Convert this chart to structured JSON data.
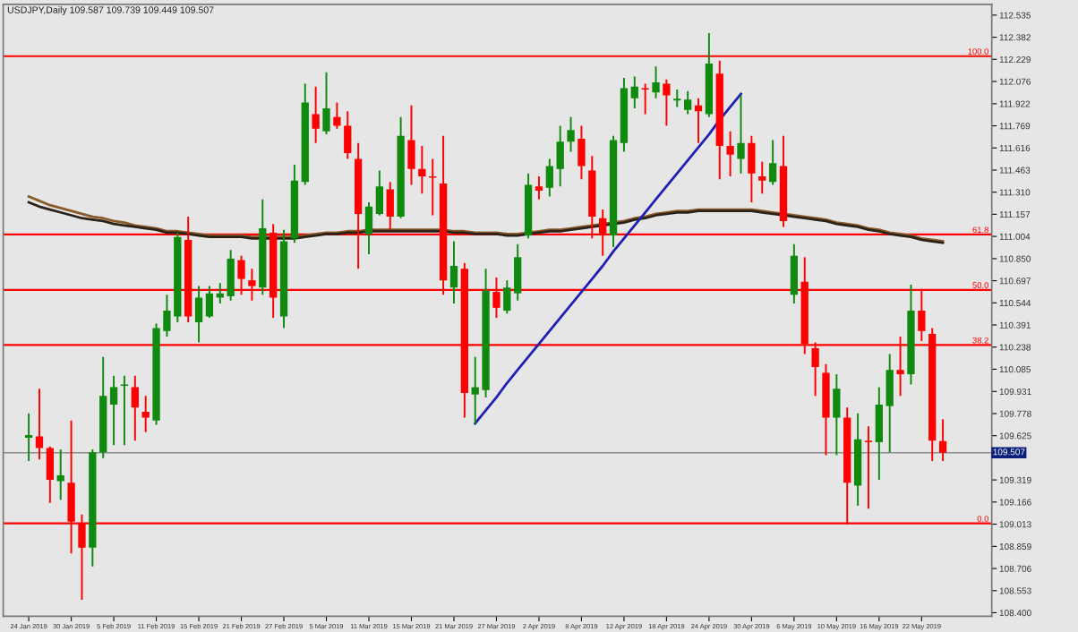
{
  "chart_data": {
    "type": "candlestick",
    "title": "USDJPY,Daily 109.587 109.739 109.449 109.507",
    "categories": [
      "24 Jan 2019",
      null,
      null,
      null,
      "30 Jan 2019",
      null,
      null,
      null,
      "5 Feb 2019",
      null,
      null,
      null,
      "11 Feb 2019",
      null,
      null,
      null,
      "15 Feb 2019",
      null,
      null,
      null,
      "21 Feb 2019",
      null,
      null,
      null,
      "27 Feb 2019",
      null,
      null,
      null,
      "5 Mar 2019",
      null,
      null,
      null,
      "11 Mar 2019",
      null,
      null,
      null,
      "15 Mar 2019",
      null,
      null,
      null,
      "21 Mar 2019",
      null,
      null,
      null,
      "27 Mar 2019",
      null,
      null,
      null,
      "2 Apr 2019",
      null,
      null,
      null,
      "8 Apr 2019",
      null,
      null,
      null,
      "12 Apr 2019",
      null,
      null,
      null,
      "18 Apr 2019",
      null,
      null,
      null,
      "24 Apr 2019",
      null,
      null,
      null,
      "30 Apr 2019",
      null,
      null,
      null,
      "6 May 2019",
      null,
      null,
      null,
      "10 May 2019",
      null,
      null,
      null,
      "16 May 2019",
      null,
      null,
      null,
      "22 May 2019",
      null,
      null
    ],
    "ohlc": [
      [
        109.61,
        109.78,
        109.45,
        109.63
      ],
      [
        109.62,
        109.95,
        109.46,
        109.54
      ],
      [
        109.54,
        109.55,
        109.16,
        109.32
      ],
      [
        109.31,
        109.53,
        109.18,
        109.35
      ],
      [
        109.3,
        109.73,
        108.81,
        109.03
      ],
      [
        109.02,
        109.08,
        108.49,
        108.85
      ],
      [
        108.85,
        109.53,
        108.72,
        109.51
      ],
      [
        109.51,
        110.17,
        109.47,
        109.9
      ],
      [
        109.84,
        110.04,
        109.56,
        109.96
      ],
      [
        109.97,
        110.04,
        109.56,
        109.98
      ],
      [
        109.96,
        110.04,
        109.59,
        109.82
      ],
      [
        109.79,
        109.9,
        109.65,
        109.75
      ],
      [
        109.73,
        110.4,
        109.7,
        110.37
      ],
      [
        110.35,
        110.6,
        110.31,
        110.49
      ],
      [
        110.45,
        111.03,
        110.41,
        111.0
      ],
      [
        110.98,
        111.14,
        110.41,
        110.45
      ],
      [
        110.41,
        110.66,
        110.27,
        110.58
      ],
      [
        110.45,
        110.66,
        110.44,
        110.61
      ],
      [
        110.58,
        110.68,
        110.54,
        110.61
      ],
      [
        110.59,
        110.91,
        110.56,
        110.85
      ],
      [
        110.84,
        110.87,
        110.6,
        110.71
      ],
      [
        110.7,
        110.78,
        110.56,
        110.66
      ],
      [
        110.65,
        111.26,
        110.6,
        111.06
      ],
      [
        111.03,
        111.09,
        110.44,
        110.58
      ],
      [
        110.45,
        111.05,
        110.37,
        110.97
      ],
      [
        110.99,
        111.5,
        110.96,
        111.39
      ],
      [
        111.38,
        112.06,
        111.36,
        111.93
      ],
      [
        111.85,
        112.04,
        111.65,
        111.75
      ],
      [
        111.73,
        112.14,
        111.71,
        111.89
      ],
      [
        111.83,
        111.93,
        111.75,
        111.77
      ],
      [
        111.77,
        111.87,
        111.54,
        111.58
      ],
      [
        111.54,
        111.65,
        110.78,
        111.16
      ],
      [
        111.02,
        111.24,
        110.88,
        111.21
      ],
      [
        111.16,
        111.46,
        111.15,
        111.35
      ],
      [
        111.33,
        111.38,
        111.05,
        111.14
      ],
      [
        111.14,
        111.83,
        111.13,
        111.7
      ],
      [
        111.67,
        111.91,
        111.36,
        111.47
      ],
      [
        111.47,
        111.63,
        111.3,
        111.42
      ],
      [
        111.42,
        111.54,
        111.15,
        111.41
      ],
      [
        111.37,
        111.7,
        110.6,
        110.7
      ],
      [
        110.65,
        110.97,
        110.54,
        110.8
      ],
      [
        110.78,
        110.82,
        109.75,
        109.92
      ],
      [
        109.91,
        110.17,
        109.71,
        109.96
      ],
      [
        109.94,
        110.78,
        109.89,
        110.63
      ],
      [
        110.62,
        110.72,
        110.44,
        110.51
      ],
      [
        110.49,
        110.7,
        110.47,
        110.65
      ],
      [
        110.61,
        110.95,
        110.56,
        110.86
      ],
      [
        111.01,
        111.44,
        110.99,
        111.36
      ],
      [
        111.35,
        111.42,
        111.26,
        111.32
      ],
      [
        111.34,
        111.54,
        111.28,
        111.49
      ],
      [
        111.47,
        111.77,
        111.35,
        111.66
      ],
      [
        111.66,
        111.83,
        111.59,
        111.74
      ],
      [
        111.68,
        111.77,
        111.4,
        111.49
      ],
      [
        111.46,
        111.56,
        110.99,
        111.14
      ],
      [
        111.13,
        111.19,
        110.87,
        111.01
      ],
      [
        111.01,
        111.7,
        110.93,
        111.67
      ],
      [
        111.65,
        112.1,
        111.59,
        112.03
      ],
      [
        111.96,
        112.11,
        111.89,
        112.04
      ],
      [
        112.03,
        112.06,
        111.85,
        112.02
      ],
      [
        112.0,
        112.18,
        111.96,
        112.07
      ],
      [
        112.06,
        112.09,
        111.77,
        111.98
      ],
      [
        111.95,
        112.02,
        111.9,
        111.95
      ],
      [
        111.88,
        112.01,
        111.85,
        111.95
      ],
      [
        111.91,
        111.96,
        111.65,
        111.87
      ],
      [
        111.85,
        112.41,
        111.83,
        112.2
      ],
      [
        112.13,
        112.22,
        111.4,
        111.63
      ],
      [
        111.63,
        111.73,
        111.42,
        111.57
      ],
      [
        111.54,
        111.98,
        111.44,
        111.65
      ],
      [
        111.65,
        111.7,
        111.24,
        111.44
      ],
      [
        111.42,
        111.52,
        111.3,
        111.39
      ],
      [
        111.38,
        111.67,
        111.36,
        111.51
      ],
      [
        111.49,
        111.7,
        111.07,
        111.11
      ],
      [
        110.6,
        110.95,
        110.54,
        110.87
      ],
      [
        110.69,
        110.86,
        110.19,
        110.26
      ],
      [
        110.23,
        110.27,
        109.9,
        110.1
      ],
      [
        110.06,
        110.12,
        109.49,
        109.75
      ],
      [
        109.75,
        110.05,
        109.49,
        109.95
      ],
      [
        109.75,
        109.82,
        109.01,
        109.3
      ],
      [
        109.28,
        109.78,
        109.14,
        109.6
      ],
      [
        109.59,
        109.69,
        109.12,
        109.58
      ],
      [
        109.58,
        109.96,
        109.32,
        109.84
      ],
      [
        109.83,
        110.19,
        109.51,
        110.08
      ],
      [
        110.08,
        110.31,
        109.9,
        110.05
      ],
      [
        110.05,
        110.67,
        109.98,
        110.49
      ],
      [
        110.49,
        110.64,
        110.28,
        110.35
      ],
      [
        110.33,
        110.37,
        109.45,
        109.59
      ],
      [
        109.587,
        109.739,
        109.449,
        109.507
      ]
    ],
    "colors": [
      "#0f8a0f",
      "#ff0000",
      "#ff0000",
      "#0f8a0f",
      "#ff0000",
      "#ff0000",
      "#0f8a0f",
      "#0f8a0f",
      "#0f8a0f",
      "#0f8a0f",
      "#ff0000",
      "#ff0000",
      "#0f8a0f",
      "#0f8a0f",
      "#0f8a0f",
      "#ff0000",
      "#0f8a0f",
      "#0f8a0f",
      "#0f8a0f",
      "#0f8a0f",
      "#ff0000",
      "#ff0000",
      "#0f8a0f",
      "#ff0000",
      "#0f8a0f",
      "#0f8a0f",
      "#0f8a0f",
      "#ff0000",
      "#0f8a0f",
      "#ff0000",
      "#ff0000",
      "#ff0000",
      "#0f8a0f",
      "#0f8a0f",
      "#ff0000",
      "#0f8a0f",
      "#ff0000",
      "#ff0000",
      "#ff0000",
      "#ff0000",
      "#0f8a0f",
      "#ff0000",
      "#0f8a0f",
      "#0f8a0f",
      "#ff0000",
      "#0f8a0f",
      "#0f8a0f",
      "#0f8a0f",
      "#ff0000",
      "#0f8a0f",
      "#0f8a0f",
      "#0f8a0f",
      "#ff0000",
      "#ff0000",
      "#ff0000",
      "#0f8a0f",
      "#0f8a0f",
      "#0f8a0f",
      "#ff0000",
      "#0f8a0f",
      "#ff0000",
      "#0f8a0f",
      "#0f8a0f",
      "#ff0000",
      "#0f8a0f",
      "#ff0000",
      "#ff0000",
      "#0f8a0f",
      "#ff0000",
      "#ff0000",
      "#0f8a0f",
      "#ff0000",
      "#0f8a0f",
      "#ff0000",
      "#ff0000",
      "#ff0000",
      "#0f8a0f",
      "#ff0000",
      "#0f8a0f",
      "#ff0000",
      "#0f8a0f",
      "#0f8a0f",
      "#ff0000",
      "#0f8a0f",
      "#ff0000",
      "#ff0000",
      "#ff0000"
    ],
    "series": [
      {
        "type": "line",
        "color": "#8b5a2b",
        "values": [
          111.28,
          111.25,
          111.22,
          111.2,
          111.18,
          111.16,
          111.14,
          111.13,
          111.11,
          111.1,
          111.08,
          111.07,
          111.06,
          111.04,
          111.04,
          111.03,
          111.02,
          111.01,
          111.01,
          111.01,
          111.01,
          111.0,
          111.0,
          111.0,
          111.0,
          111.0,
          111.01,
          111.02,
          111.03,
          111.03,
          111.04,
          111.04,
          111.05,
          111.05,
          111.05,
          111.05,
          111.05,
          111.05,
          111.05,
          111.05,
          111.04,
          111.04,
          111.03,
          111.03,
          111.03,
          111.02,
          111.02,
          111.03,
          111.04,
          111.05,
          111.05,
          111.06,
          111.07,
          111.08,
          111.09,
          111.1,
          111.11,
          111.13,
          111.14,
          111.16,
          111.17,
          111.18,
          111.18,
          111.19,
          111.19,
          111.19,
          111.19,
          111.19,
          111.19,
          111.18,
          111.17,
          111.16,
          111.15,
          111.14,
          111.13,
          111.12,
          111.1,
          111.09,
          111.08,
          111.06,
          111.05,
          111.03,
          111.02,
          111.01,
          110.99,
          110.98,
          110.97
        ]
      },
      {
        "type": "line",
        "color": "#2a2118",
        "values": [
          111.24,
          111.21,
          111.19,
          111.17,
          111.15,
          111.13,
          111.12,
          111.11,
          111.09,
          111.08,
          111.07,
          111.06,
          111.05,
          111.03,
          111.03,
          111.02,
          111.01,
          111.0,
          111.0,
          111.0,
          111.0,
          110.99,
          110.99,
          110.99,
          110.99,
          110.99,
          111.0,
          111.01,
          111.02,
          111.02,
          111.03,
          111.03,
          111.04,
          111.04,
          111.04,
          111.04,
          111.04,
          111.04,
          111.04,
          111.04,
          111.03,
          111.03,
          111.02,
          111.02,
          111.02,
          111.01,
          111.01,
          111.02,
          111.03,
          111.04,
          111.04,
          111.05,
          111.06,
          111.07,
          111.08,
          111.09,
          111.1,
          111.12,
          111.13,
          111.15,
          111.16,
          111.17,
          111.17,
          111.18,
          111.18,
          111.18,
          111.18,
          111.18,
          111.18,
          111.17,
          111.16,
          111.15,
          111.14,
          111.13,
          111.12,
          111.11,
          111.09,
          111.08,
          111.07,
          111.05,
          111.04,
          111.02,
          111.01,
          111.0,
          110.98,
          110.97,
          110.96
        ]
      },
      {
        "type": "line",
        "color": "#1f1fb4",
        "values": [
          null,
          null,
          null,
          null,
          null,
          null,
          null,
          null,
          null,
          null,
          null,
          null,
          null,
          null,
          null,
          null,
          null,
          null,
          null,
          null,
          null,
          null,
          null,
          null,
          null,
          null,
          null,
          null,
          null,
          null,
          null,
          null,
          null,
          null,
          null,
          null,
          null,
          null,
          null,
          null,
          null,
          null,
          109.71,
          109.8,
          109.89,
          109.99,
          110.08,
          110.17,
          110.26,
          110.35,
          110.44,
          110.53,
          110.62,
          110.71,
          110.8,
          110.9,
          110.99,
          111.08,
          111.17,
          111.26,
          111.35,
          111.44,
          111.53,
          111.62,
          111.71,
          111.81,
          111.9,
          111.99,
          null,
          null,
          null,
          null,
          null,
          null,
          null,
          null,
          null,
          null,
          null,
          null,
          null,
          null,
          null,
          null,
          null,
          null,
          null
        ]
      }
    ],
    "ylim": [
      108.376,
      112.609
    ],
    "yticks": [
      112.535,
      112.382,
      112.229,
      112.076,
      111.922,
      111.769,
      111.616,
      111.463,
      {
        "value": 111.31,
        "label": "111.310"
      },
      111.157,
      111.004,
      {
        "value": 110.85,
        "label": "110.850"
      },
      110.697,
      110.544,
      110.391,
      110.238,
      110.085,
      109.931,
      109.778,
      109.625,
      109.319,
      109.166,
      109.013,
      108.859,
      108.706,
      108.553,
      {
        "value": 108.4,
        "label": "108.400"
      }
    ],
    "ref_lines": [
      {
        "axis": "y",
        "value": 112.251,
        "color": "#ff0000"
      },
      {
        "axis": "y",
        "value": 111.017,
        "color": "#ff0000"
      },
      {
        "axis": "y",
        "value": 110.634,
        "color": "#ff0000"
      },
      {
        "axis": "y",
        "value": 110.252,
        "color": "#ff0000"
      },
      {
        "axis": "y",
        "value": 109.018,
        "color": "#ff0000"
      },
      {
        "axis": "y",
        "value": 109.507,
        "label": "109.507",
        "color": "#8c8c8c"
      }
    ],
    "annotations": [
      {
        "text": "100.0",
        "y": 112.251
      },
      {
        "text": "61.8",
        "y": 111.017
      },
      {
        "text": "50.0",
        "y": 110.634
      },
      {
        "text": "38.2",
        "y": 110.252
      },
      {
        "text": "0.0",
        "y": 109.018
      }
    ],
    "grid": false,
    "legend": false
  }
}
